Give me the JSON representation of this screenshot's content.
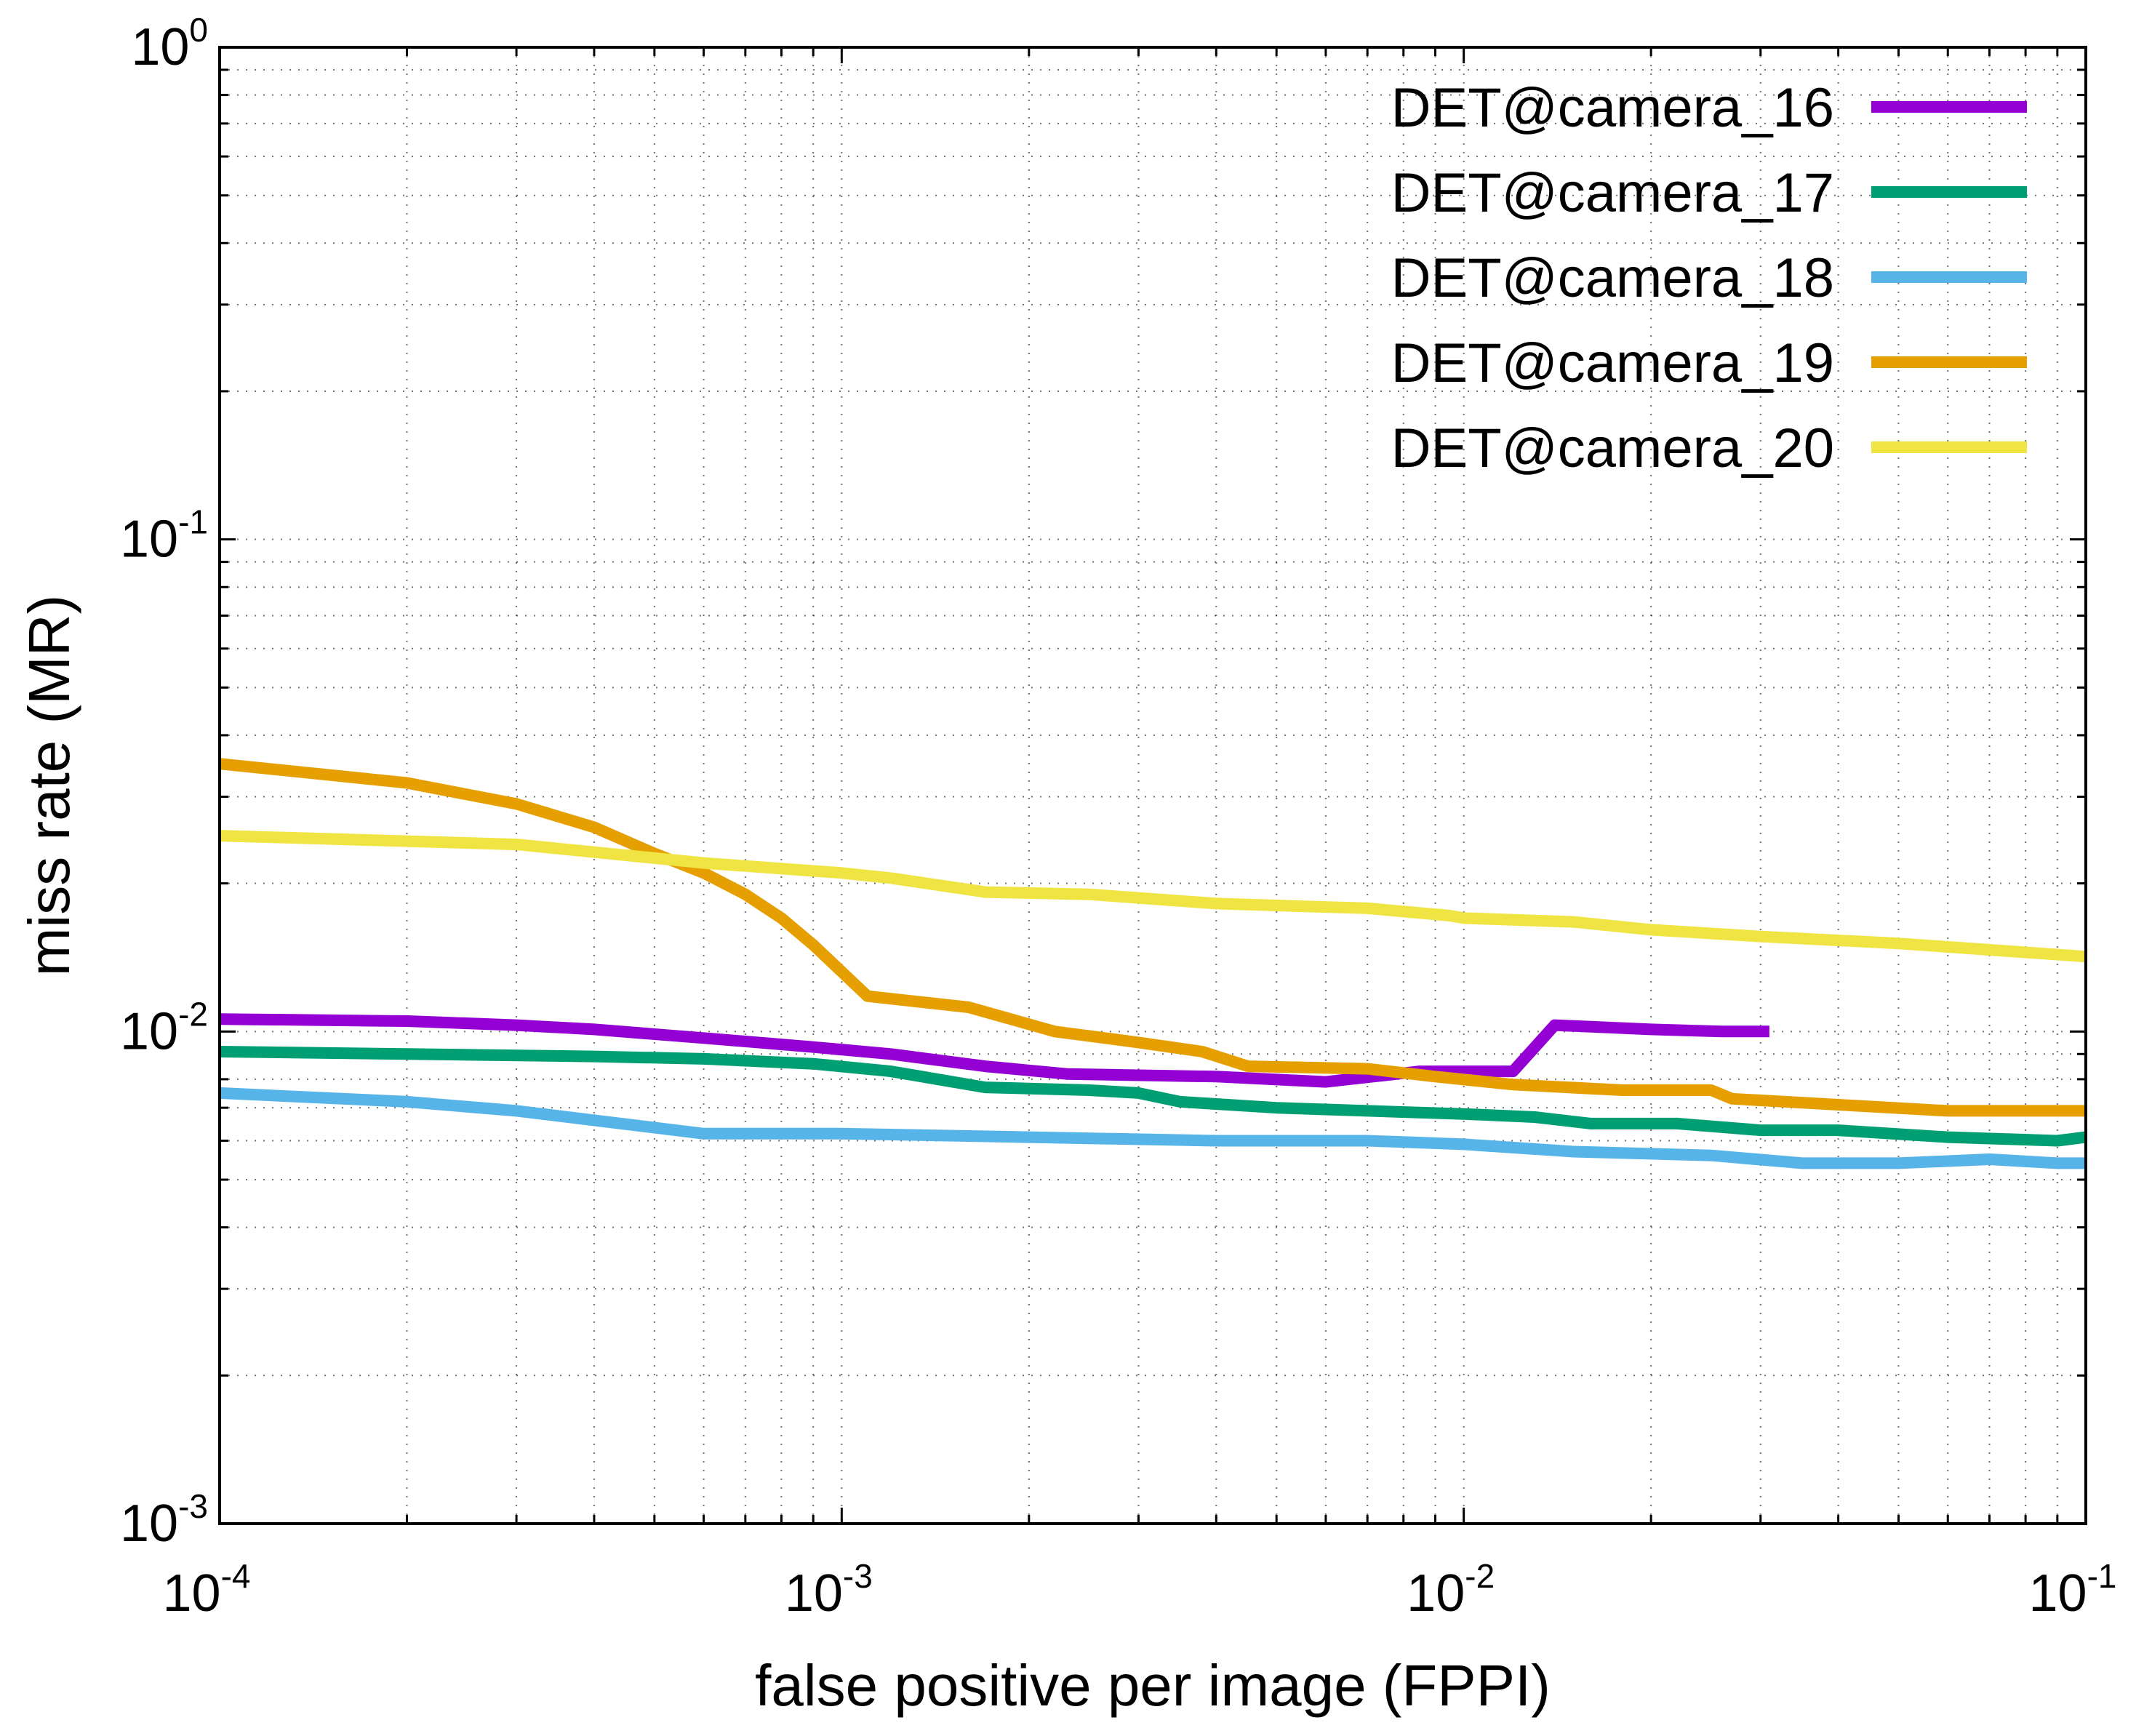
{
  "chart_data": {
    "type": "line",
    "x_scale": "log",
    "y_scale": "log",
    "xlim": [
      0.0001,
      0.1
    ],
    "ylim": [
      0.001,
      1
    ],
    "xlabel": "false positive per image (FPPI)",
    "ylabel": "miss rate (MR)",
    "grid": true,
    "legend_position": "top-right",
    "x_ticks": [
      {
        "value": 0.0001,
        "base": "10",
        "exp": "-4"
      },
      {
        "value": 0.001,
        "base": "10",
        "exp": "-3"
      },
      {
        "value": 0.01,
        "base": "10",
        "exp": "-2"
      },
      {
        "value": 0.1,
        "base": "10",
        "exp": "-1"
      }
    ],
    "y_ticks": [
      {
        "value": 0.001,
        "base": "10",
        "exp": "-3"
      },
      {
        "value": 0.01,
        "base": "10",
        "exp": "-2"
      },
      {
        "value": 0.1,
        "base": "10",
        "exp": "-1"
      },
      {
        "value": 1,
        "base": "10",
        "exp": "0"
      }
    ],
    "series": [
      {
        "name": "DET@camera_16",
        "color": "#9400d3",
        "x": [
          0.0001,
          0.0002,
          0.0003,
          0.0004,
          0.0006,
          0.0009,
          0.0012,
          0.0017,
          0.0023,
          0.004,
          0.006,
          0.0085,
          0.012,
          0.014,
          0.02,
          0.026,
          0.031
        ],
        "y": [
          0.0106,
          0.0105,
          0.0103,
          0.0101,
          0.0097,
          0.0093,
          0.009,
          0.0085,
          0.0082,
          0.0081,
          0.0079,
          0.0083,
          0.0083,
          0.0103,
          0.0101,
          0.01,
          0.01
        ]
      },
      {
        "name": "DET@camera_17",
        "color": "#009e73",
        "x": [
          0.0001,
          0.0002,
          0.0004,
          0.0006,
          0.0009,
          0.0012,
          0.0017,
          0.0025,
          0.003,
          0.0035,
          0.005,
          0.007,
          0.01,
          0.013,
          0.016,
          0.022,
          0.03,
          0.04,
          0.06,
          0.09,
          0.1
        ],
        "y": [
          0.0091,
          0.009,
          0.0089,
          0.0088,
          0.0086,
          0.0083,
          0.0077,
          0.0076,
          0.0075,
          0.0072,
          0.007,
          0.0069,
          0.0068,
          0.0067,
          0.0065,
          0.0065,
          0.0063,
          0.0063,
          0.0061,
          0.006,
          0.0061
        ]
      },
      {
        "name": "DET@camera_18",
        "color": "#56b4e9",
        "x": [
          0.0001,
          0.0002,
          0.0003,
          0.0004,
          0.0006,
          0.001,
          0.002,
          0.004,
          0.007,
          0.01,
          0.015,
          0.025,
          0.035,
          0.05,
          0.07,
          0.09,
          0.1
        ],
        "y": [
          0.0075,
          0.0072,
          0.0069,
          0.0066,
          0.0062,
          0.0062,
          0.0061,
          0.006,
          0.006,
          0.0059,
          0.0057,
          0.0056,
          0.0054,
          0.0054,
          0.0055,
          0.0054,
          0.0054
        ]
      },
      {
        "name": "DET@camera_19",
        "color": "#e69f00",
        "x": [
          0.0001,
          0.0002,
          0.0003,
          0.0004,
          0.0005,
          0.0006,
          0.0007,
          0.0008,
          0.0009,
          0.0011,
          0.0016,
          0.0022,
          0.003,
          0.0038,
          0.0045,
          0.007,
          0.009,
          0.012,
          0.018,
          0.025,
          0.027,
          0.04,
          0.06,
          0.08,
          0.1
        ],
        "y": [
          0.035,
          0.032,
          0.029,
          0.026,
          0.023,
          0.021,
          0.019,
          0.017,
          0.015,
          0.0118,
          0.0112,
          0.01,
          0.0095,
          0.0091,
          0.0085,
          0.0084,
          0.0081,
          0.0078,
          0.0076,
          0.0076,
          0.0073,
          0.0071,
          0.0069,
          0.0069,
          0.0069
        ]
      },
      {
        "name": "DET@camera_20",
        "color": "#f0e442",
        "x": [
          0.0001,
          0.0003,
          0.0006,
          0.001,
          0.0012,
          0.0017,
          0.0025,
          0.004,
          0.007,
          0.0095,
          0.01,
          0.015,
          0.02,
          0.03,
          0.05,
          0.1
        ],
        "y": [
          0.025,
          0.024,
          0.022,
          0.021,
          0.0205,
          0.0192,
          0.019,
          0.0182,
          0.0178,
          0.0172,
          0.017,
          0.0167,
          0.0161,
          0.0156,
          0.0151,
          0.0142
        ]
      }
    ]
  }
}
